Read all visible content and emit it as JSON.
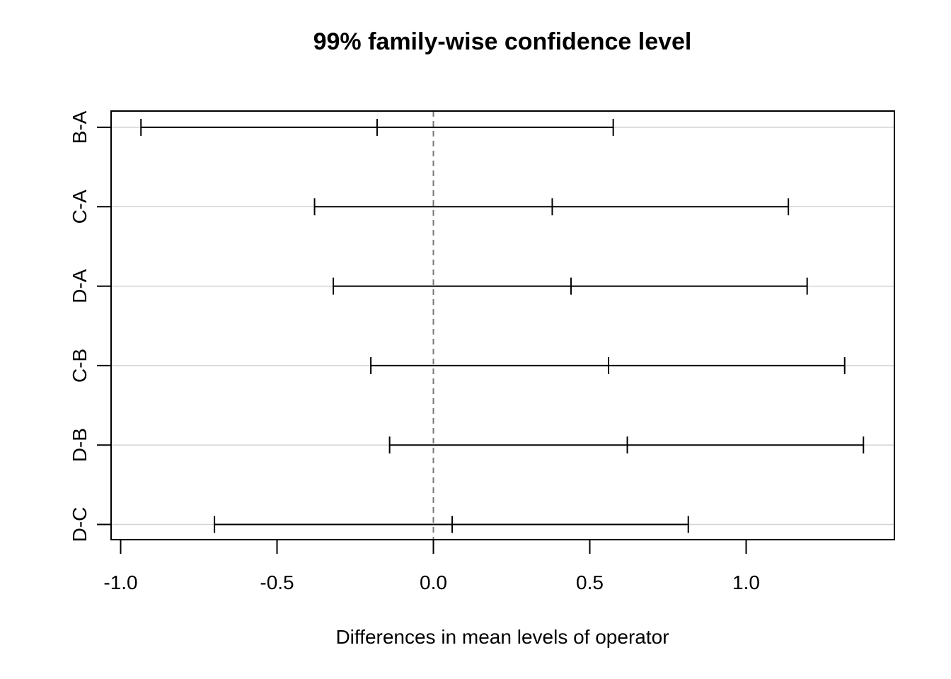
{
  "chart_data": {
    "type": "errorbar",
    "title": "99% family-wise confidence level",
    "xlabel": "Differences in mean levels of operator",
    "ylabel": "",
    "xticks": [
      -1.0,
      -0.5,
      0.0,
      0.5,
      1.0
    ],
    "xtick_labels": [
      "-1.0",
      "-0.5",
      "0.0",
      "0.5",
      "1.0"
    ],
    "xlim": [
      -1.03,
      1.47
    ],
    "reference_line": 0,
    "grid": "horizontal",
    "categories": [
      "B-A",
      "C-A",
      "D-A",
      "C-B",
      "D-B",
      "D-C"
    ],
    "intervals": [
      {
        "label": "B-A",
        "lwr": -0.935,
        "diff": -0.18,
        "upr": 0.575
      },
      {
        "label": "C-A",
        "lwr": -0.38,
        "diff": 0.38,
        "upr": 1.135
      },
      {
        "label": "D-A",
        "lwr": -0.32,
        "diff": 0.44,
        "upr": 1.195
      },
      {
        "label": "C-B",
        "lwr": -0.2,
        "diff": 0.56,
        "upr": 1.315
      },
      {
        "label": "D-B",
        "lwr": -0.14,
        "diff": 0.62,
        "upr": 1.375
      },
      {
        "label": "D-C",
        "lwr": -0.7,
        "diff": 0.06,
        "upr": 0.815
      }
    ]
  }
}
